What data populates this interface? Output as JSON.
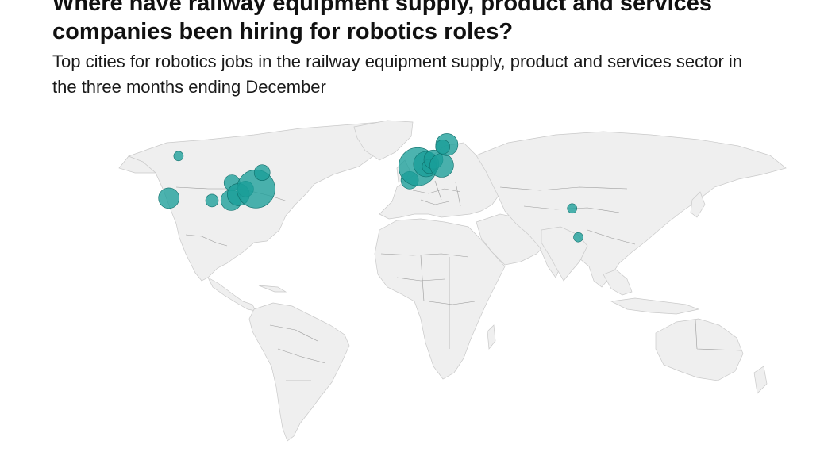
{
  "header": {
    "title": "Where have railway equipment supply, product and services companies been hiring for robotics roles?",
    "subtitle": "Top cities for robotics jobs in the railway equipment supply, product and services sector in the three months ending December"
  },
  "colors": {
    "bubble": "#1a9e98",
    "land": "#efefef",
    "border": "#9a9a9a"
  },
  "map": {
    "points": [
      {
        "lon": -118.2,
        "lat": 34.1,
        "size": 13
      },
      {
        "lon": -97.3,
        "lat": 32.8,
        "size": 8
      },
      {
        "lon": -87.6,
        "lat": 41.9,
        "size": 10
      },
      {
        "lon": -88.0,
        "lat": 33.0,
        "size": 13
      },
      {
        "lon": -84.5,
        "lat": 36.0,
        "size": 14
      },
      {
        "lon": -81.0,
        "lat": 39.0,
        "size": 10
      },
      {
        "lon": -76.0,
        "lat": 39.0,
        "size": 24
      },
      {
        "lon": -73.0,
        "lat": 46.3,
        "size": 10
      },
      {
        "lon": -113.5,
        "lat": 53.5,
        "size": 6
      },
      {
        "lon": -1.5,
        "lat": 43.0,
        "size": 11
      },
      {
        "lon": 2.4,
        "lat": 48.9,
        "size": 24
      },
      {
        "lon": 6.5,
        "lat": 50.0,
        "size": 16
      },
      {
        "lon": 8.0,
        "lat": 49.0,
        "size": 9
      },
      {
        "lon": 10.0,
        "lat": 52.0,
        "size": 12
      },
      {
        "lon": 14.0,
        "lat": 49.5,
        "size": 15
      },
      {
        "lon": 16.5,
        "lat": 58.5,
        "size": 14
      },
      {
        "lon": 14.5,
        "lat": 57.5,
        "size": 9
      },
      {
        "lon": 77.2,
        "lat": 28.6,
        "size": 6
      },
      {
        "lon": 80.2,
        "lat": 13.1,
        "size": 6
      }
    ]
  }
}
